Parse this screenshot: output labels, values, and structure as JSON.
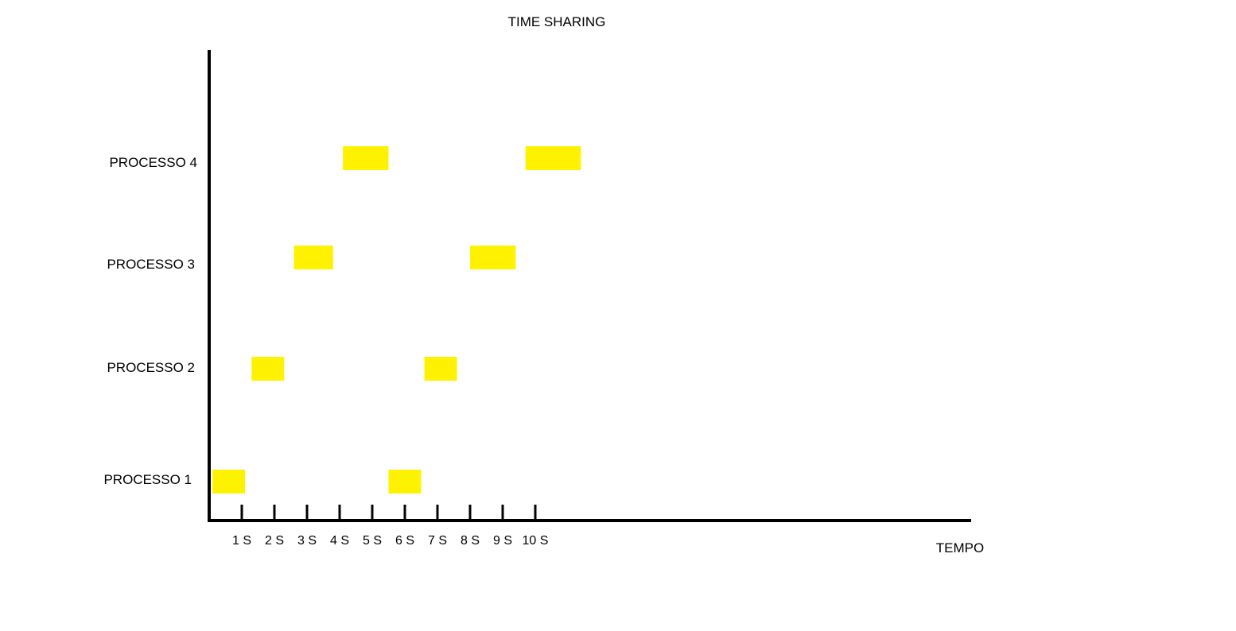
{
  "chart_data": {
    "type": "gantt",
    "title": "TIME SHARING",
    "xlabel": "TEMPO",
    "ylabel": "",
    "x_unit_seconds": true,
    "xlim": [
      0,
      23.3
    ],
    "tick_values": [
      1,
      2,
      3,
      4,
      5,
      6,
      7,
      8,
      9,
      10
    ],
    "tick_labels": [
      "1 S",
      "2 S",
      "3 S",
      "4 S",
      "5 S",
      "6 S",
      "7 S",
      "8 S",
      "9 S",
      "10 S"
    ],
    "categories": [
      "PROCESSO 1",
      "PROCESSO 2",
      "PROCESSO 3",
      "PROCESSO 4"
    ],
    "segments": [
      {
        "process": "PROCESSO 1",
        "start": 0.1,
        "end": 1.1
      },
      {
        "process": "PROCESSO 1",
        "start": 5.5,
        "end": 6.5
      },
      {
        "process": "PROCESSO 2",
        "start": 1.3,
        "end": 2.3
      },
      {
        "process": "PROCESSO 2",
        "start": 6.6,
        "end": 7.6
      },
      {
        "process": "PROCESSO 3",
        "start": 2.6,
        "end": 3.8
      },
      {
        "process": "PROCESSO 3",
        "start": 8.0,
        "end": 9.4
      },
      {
        "process": "PROCESSO 4",
        "start": 4.1,
        "end": 5.5
      },
      {
        "process": "PROCESSO 4",
        "start": 9.7,
        "end": 11.4
      }
    ],
    "bar_color": "#fff200",
    "axis_color": "#000000",
    "grid": false,
    "legend": "none"
  }
}
